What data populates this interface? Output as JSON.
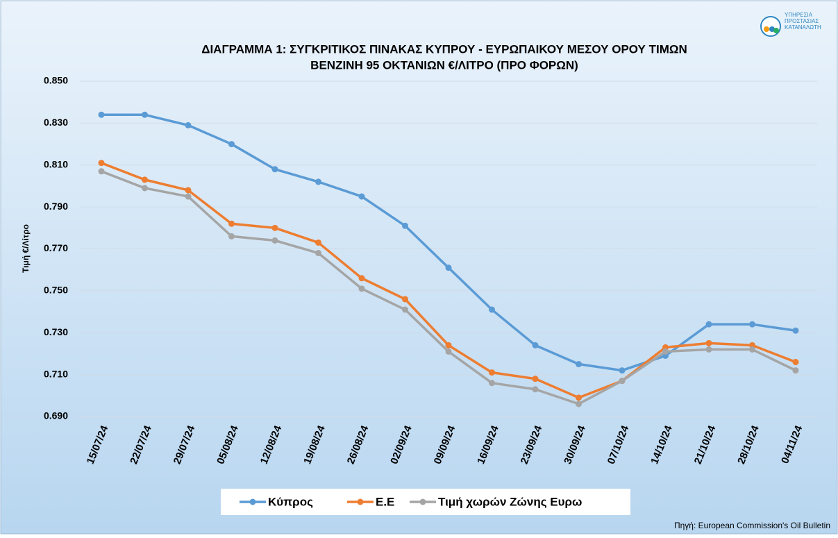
{
  "chart_data": {
    "type": "line",
    "title": [
      "ΔΙΑΓΡΑΜΜΑ 1: ΣΥΓΚΡΙΤΙΚΟΣ ΠΙΝΑΚΑΣ ΚΥΠΡΟΥ - ΕΥΡΩΠΑΙΚΟΥ ΜΕΣΟΥ ΟΡΟΥ ΤΙΜΩΝ",
      "ΒΕΝΖΙΝΗ 95 ΟΚΤΑΝΙΩΝ €/ΛΙΤΡΟ (ΠΡΟ ΦΟΡΩΝ)"
    ],
    "ylabel": "Τιμή €/Λίτρο",
    "source": "Πηγή: European Commission's Oil Bulletin",
    "logo_text": [
      "ΥΠΗΡΕΣΙΑ",
      "ΠΡΟΣΤΑΣΙΑΣ",
      "ΚΑΤΑΝΑΛΩΤΗ"
    ],
    "categories": [
      "15/07/24",
      "22/07/24",
      "29/07/24",
      "05/08/24",
      "12/08/24",
      "19/08/24",
      "26/08/24",
      "02/09/24",
      "09/09/24",
      "16/09/24",
      "23/09/24",
      "30/09/24",
      "07/10/24",
      "14/10/24",
      "21/10/24",
      "28/10/24",
      "04/11/24"
    ],
    "series": [
      {
        "name": "Κύπρος",
        "color": "#5b9bd5",
        "values": [
          0.834,
          0.834,
          0.829,
          0.82,
          0.808,
          0.802,
          0.795,
          0.781,
          0.761,
          0.741,
          0.724,
          0.715,
          0.712,
          0.719,
          0.734,
          0.734,
          0.731
        ]
      },
      {
        "name": "Ε.Ε",
        "color": "#ed7d31",
        "values": [
          0.811,
          0.803,
          0.798,
          0.782,
          0.78,
          0.773,
          0.756,
          0.746,
          0.724,
          0.711,
          0.708,
          0.699,
          0.707,
          0.723,
          0.725,
          0.724,
          0.716
        ]
      },
      {
        "name": "Τιμή χωρών Ζώνης Ευρω",
        "color": "#a5a5a5",
        "values": [
          0.807,
          0.799,
          0.795,
          0.776,
          0.774,
          0.768,
          0.751,
          0.741,
          0.721,
          0.706,
          0.703,
          0.696,
          0.707,
          0.721,
          0.722,
          0.722,
          0.712
        ]
      }
    ],
    "ylim": [
      0.69,
      0.85
    ],
    "yticks": [
      {
        "value": 0.69,
        "label": "0.690"
      },
      {
        "value": 0.71,
        "label": "0.710"
      },
      {
        "value": 0.73,
        "label": "0.730"
      },
      {
        "value": 0.75,
        "label": "0.750"
      },
      {
        "value": 0.77,
        "label": "0.770"
      },
      {
        "value": 0.79,
        "label": "0.790"
      },
      {
        "value": 0.81,
        "label": "0.810"
      },
      {
        "value": 0.83,
        "label": "0.830"
      },
      {
        "value": 0.85,
        "label": "0.850"
      }
    ],
    "grid": true
  }
}
